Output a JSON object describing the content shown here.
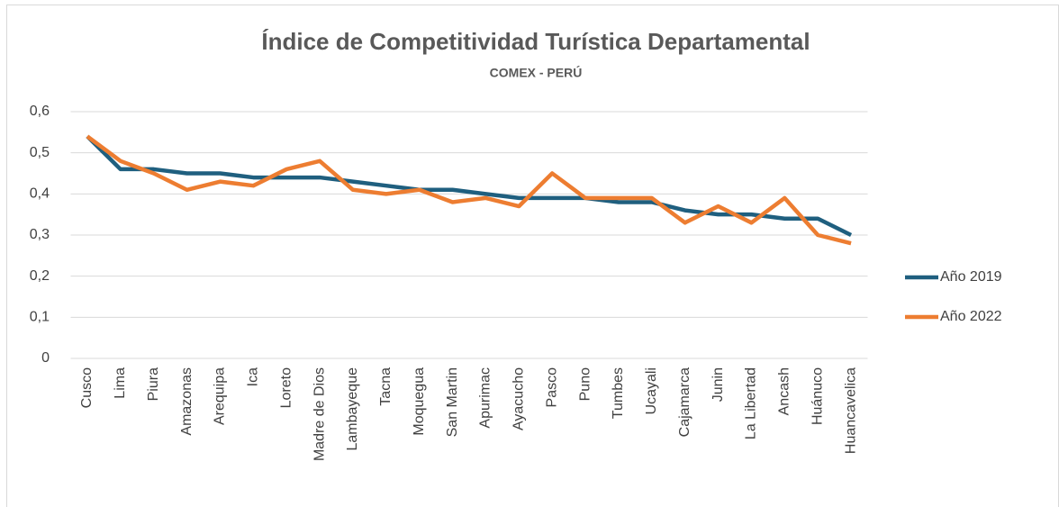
{
  "chart_data": {
    "type": "line",
    "title": "Índice de Competitividad Turística Departamental",
    "subtitle": "COMEX - PERÚ",
    "categories": [
      "Cusco",
      "Lima",
      "Piura",
      "Amazonas",
      "Arequipa",
      "Ica",
      "Loreto",
      "Madre de Dios",
      "Lambayeque",
      "Tacna",
      "Moquegua",
      "San Martin",
      "Apurimac",
      "Ayacucho",
      "Pasco",
      "Puno",
      "Tumbes",
      "Ucayali",
      "Cajamarca",
      "Junin",
      "La Libertad",
      "Ancash",
      "Huánuco",
      "Huancavelica"
    ],
    "series": [
      {
        "name": "Año 2019",
        "color": "#1f5f7f",
        "values": [
          0.54,
          0.46,
          0.46,
          0.45,
          0.45,
          0.44,
          0.44,
          0.44,
          0.43,
          0.42,
          0.41,
          0.41,
          0.4,
          0.39,
          0.39,
          0.39,
          0.38,
          0.38,
          0.36,
          0.35,
          0.35,
          0.34,
          0.34,
          0.3
        ]
      },
      {
        "name": "Año 2022",
        "color": "#ed7d31",
        "values": [
          0.54,
          0.48,
          0.45,
          0.41,
          0.43,
          0.42,
          0.46,
          0.48,
          0.41,
          0.4,
          0.41,
          0.38,
          0.39,
          0.37,
          0.45,
          0.39,
          0.39,
          0.39,
          0.33,
          0.37,
          0.33,
          0.39,
          0.3,
          0.28
        ]
      }
    ],
    "ylim": [
      0,
      0.6
    ],
    "yticks": [
      0,
      {
        "value": 0.1,
        "label": "0,1"
      },
      {
        "value": 0.2,
        "label": "0,2"
      },
      {
        "value": 0.3,
        "label": "0,3"
      },
      {
        "value": 0.4,
        "label": "0,4"
      },
      {
        "value": 0.5,
        "label": "0,5"
      },
      {
        "value": 0.6,
        "label": "0,6"
      }
    ],
    "grid": true,
    "legend": "right"
  }
}
